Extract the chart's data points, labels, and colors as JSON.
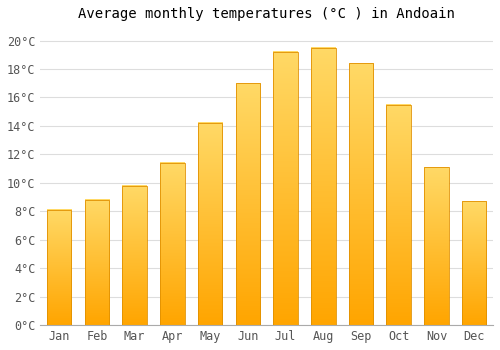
{
  "title": "Average monthly temperatures (°C ) in Andoain",
  "months": [
    "Jan",
    "Feb",
    "Mar",
    "Apr",
    "May",
    "Jun",
    "Jul",
    "Aug",
    "Sep",
    "Oct",
    "Nov",
    "Dec"
  ],
  "values": [
    8.1,
    8.8,
    9.8,
    11.4,
    14.2,
    17.0,
    19.2,
    19.5,
    18.4,
    15.5,
    11.1,
    8.7
  ],
  "bar_color_top": "#FFD966",
  "bar_color_bottom": "#FFA500",
  "bar_edge_color": "#E09000",
  "background_color": "#FFFFFF",
  "grid_color": "#DDDDDD",
  "ylim": [
    0,
    21
  ],
  "yticks": [
    0,
    2,
    4,
    6,
    8,
    10,
    12,
    14,
    16,
    18,
    20
  ],
  "title_fontsize": 10,
  "tick_fontsize": 8.5,
  "bar_width": 0.65
}
